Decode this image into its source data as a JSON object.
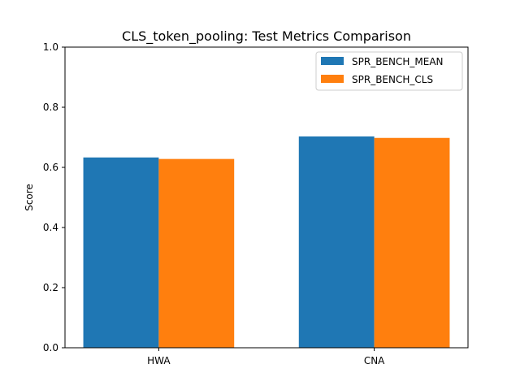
{
  "chart_data": {
    "type": "bar",
    "title": "CLS_token_pooling: Test Metrics Comparison",
    "xlabel": "",
    "ylabel": "Score",
    "categories": [
      "HWA",
      "CNA"
    ],
    "series": [
      {
        "name": "SPR_BENCH_MEAN",
        "values": [
          0.633,
          0.703
        ],
        "color": "#1f77b4"
      },
      {
        "name": "SPR_BENCH_CLS",
        "values": [
          0.628,
          0.698
        ],
        "color": "#ff7f0e"
      }
    ],
    "ylim": [
      0,
      1.0
    ],
    "yticks": [
      "0.0",
      "0.2",
      "0.4",
      "0.6",
      "0.8",
      "1.0"
    ],
    "grid": false,
    "legend_position": "top-right"
  }
}
